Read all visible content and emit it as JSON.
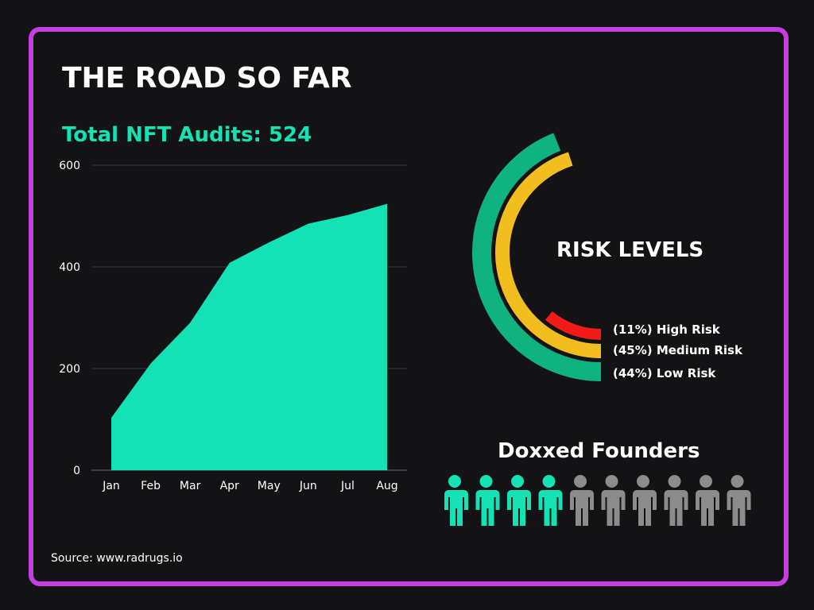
{
  "title": "THE ROAD SO FAR",
  "subtitle": "Total NFT Audits: 524",
  "source": "Source: www.radrugs.io",
  "colors": {
    "border": "#c53ee0",
    "background": "#131316",
    "area": "#14e2b4",
    "low": "#10b27f",
    "medium": "#f2bd1e",
    "high": "#f31a1a",
    "founder_doxxed": "#14e2b4",
    "founder_other": "#8c8c8c"
  },
  "chart_data": [
    {
      "type": "area",
      "categories": [
        "Jan",
        "Feb",
        "Mar",
        "Apr",
        "May",
        "Jun",
        "Jul",
        "Aug"
      ],
      "series": [
        {
          "values": [
            103,
            210,
            290,
            408,
            448,
            485,
            502,
            524
          ]
        }
      ],
      "ylim": [
        0,
        600
      ],
      "yticks": [
        0,
        200,
        400,
        600
      ],
      "grid": true
    },
    {
      "type": "pie",
      "title": "RISK LEVELS",
      "slices": [
        {
          "label": "(11%) High Risk",
          "value": 11,
          "color": "#f31a1a"
        },
        {
          "label": "(45%) Medium Risk",
          "value": 45,
          "color": "#f2bd1e"
        },
        {
          "label": "(44%) Low Risk",
          "value": 44,
          "color": "#10b27f"
        }
      ]
    },
    {
      "type": "pictogram",
      "title": "Doxxed Founders",
      "total": 10,
      "highlighted": 4
    }
  ]
}
